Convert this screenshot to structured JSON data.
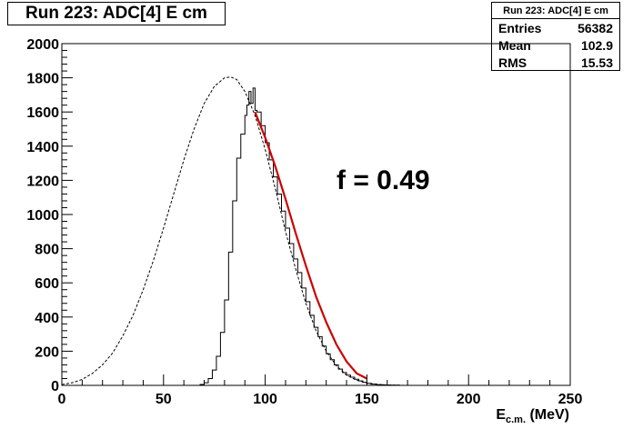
{
  "title_box": {
    "text": "Run 223: ADC[4] E cm"
  },
  "stats_box": {
    "header": "Run 223: ADC[4] E cm",
    "rows": [
      {
        "label": "Entries",
        "value": "56382"
      },
      {
        "label": "Mean",
        "value": "102.9"
      },
      {
        "label": "RMS",
        "value": "15.53"
      }
    ]
  },
  "annotation": "f = 0.49",
  "colors": {
    "fit": "#cc0000",
    "histogram": "#000000",
    "dashed": "#000000"
  },
  "chart_data": {
    "type": "line",
    "title": "Run 223: ADC[4] E cm",
    "xlabel": "E_c.m. (MeV)",
    "xlabel_main": "E",
    "xlabel_sub": "c.m.",
    "xlabel_unit": " (MeV)",
    "ylabel": "",
    "xlim": [
      0,
      250
    ],
    "ylim": [
      0,
      2000
    ],
    "xticks": [
      0,
      50,
      100,
      150,
      200,
      250
    ],
    "yticks": [
      0,
      200,
      400,
      600,
      800,
      1000,
      1200,
      1400,
      1600,
      1800,
      2000
    ],
    "grid": false,
    "series": [
      {
        "style": "histogram",
        "x": [
          60,
          64,
          68,
          70,
          72,
          74,
          76,
          78,
          80,
          82,
          84,
          86,
          88,
          90,
          91,
          92,
          93,
          94,
          95,
          96,
          98,
          100,
          102,
          104,
          106,
          108,
          110,
          112,
          114,
          116,
          118,
          120,
          122,
          124,
          126,
          128,
          130,
          132,
          134,
          136,
          138,
          140,
          142,
          144,
          146,
          148,
          150,
          152,
          155,
          158,
          162,
          166,
          170
        ],
        "values": [
          0,
          0,
          5,
          15,
          40,
          90,
          170,
          310,
          500,
          780,
          1080,
          1330,
          1470,
          1580,
          1640,
          1720,
          1650,
          1740,
          1610,
          1600,
          1520,
          1420,
          1320,
          1220,
          1120,
          1020,
          920,
          830,
          740,
          660,
          570,
          490,
          410,
          340,
          285,
          230,
          185,
          150,
          120,
          95,
          75,
          60,
          48,
          36,
          26,
          18,
          12,
          7,
          4,
          2,
          1,
          0,
          0
        ]
      },
      {
        "style": "fit",
        "x": [
          95,
          100,
          105,
          110,
          115,
          120,
          125,
          130,
          135,
          140,
          145,
          150
        ],
        "values": [
          1600,
          1450,
          1280,
          1090,
          890,
          700,
          520,
          370,
          240,
          140,
          70,
          40
        ]
      },
      {
        "style": "dashed",
        "x": [
          0,
          5,
          10,
          15,
          20,
          25,
          30,
          35,
          40,
          45,
          50,
          55,
          60,
          65,
          70,
          75,
          80,
          83,
          86,
          90,
          95,
          100,
          105,
          110,
          115,
          120,
          125,
          130,
          135,
          140,
          145,
          150,
          155,
          160,
          165,
          170
        ],
        "values": [
          5,
          15,
          35,
          70,
          120,
          190,
          290,
          410,
          560,
          730,
          920,
          1120,
          1320,
          1500,
          1650,
          1750,
          1800,
          1805,
          1790,
          1720,
          1580,
          1380,
          1150,
          900,
          680,
          480,
          320,
          200,
          115,
          60,
          30,
          14,
          6,
          2,
          1,
          0
        ]
      }
    ]
  }
}
